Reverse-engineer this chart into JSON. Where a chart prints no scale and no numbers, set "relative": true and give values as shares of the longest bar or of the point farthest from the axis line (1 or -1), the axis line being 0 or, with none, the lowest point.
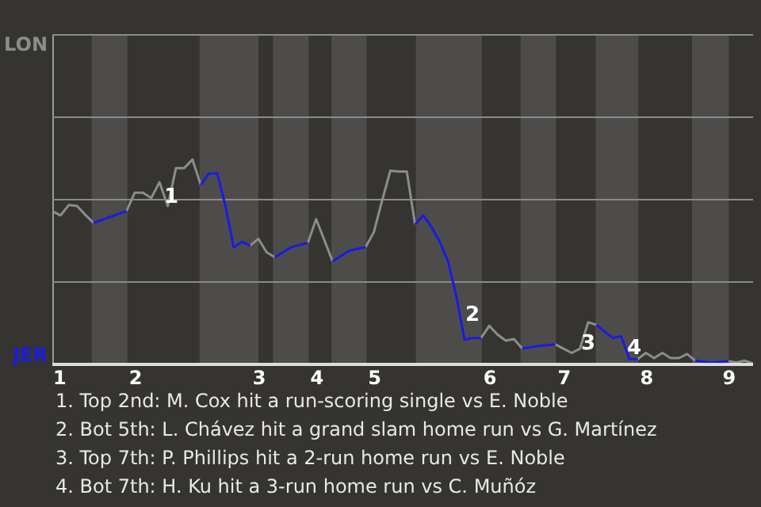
{
  "chart_data": {
    "type": "line",
    "relative": true,
    "categories": [
      "1",
      null,
      null,
      null,
      null,
      null,
      null,
      null,
      null,
      null,
      "2",
      null,
      null,
      null,
      null,
      null,
      null,
      null,
      null,
      null,
      null,
      null,
      null,
      null,
      null,
      "3",
      null,
      null,
      null,
      null,
      null,
      null,
      "4",
      null,
      null,
      null,
      null,
      null,
      null,
      "5",
      null,
      null,
      null,
      null,
      null,
      null,
      null,
      null,
      null,
      null,
      null,
      null,
      null,
      "6",
      null,
      null,
      null,
      null,
      null,
      null,
      null,
      null,
      "7",
      null,
      null,
      null,
      null,
      null,
      null,
      null,
      null,
      null,
      "8",
      null,
      null,
      null,
      null,
      null,
      null,
      null,
      null,
      null,
      "9",
      null,
      null,
      null
    ],
    "series": [
      {
        "color": "#8c8c8c",
        "values": [
          0.748,
          0.727,
          0.778,
          0.773,
          0.73,
          0.69,
          null,
          null,
          null,
          0.748,
          0.838,
          0.838,
          0.812,
          0.889,
          0.773,
          0.958,
          0.958,
          1,
          0.876,
          null,
          null,
          null,
          null,
          null,
          0.58,
          0.613,
          0.547,
          0.523,
          null,
          null,
          null,
          0.593,
          0.709,
          0.606,
          0.503,
          null,
          null,
          null,
          0.572,
          0.645,
          0.799,
          0.945,
          0.941,
          0.941,
          0.683,
          null,
          null,
          null,
          null,
          null,
          null,
          null,
          0.129,
          0.188,
          0.146,
          0.116,
          0.124,
          0.077,
          null,
          null,
          null,
          0.098,
          0.077,
          0.056,
          0.077,
          0.206,
          0.193,
          null,
          null,
          null,
          null,
          0.026,
          0.056,
          0.031,
          0.056,
          0.031,
          0.031,
          0.051,
          0.018,
          null,
          null,
          null,
          0.016,
          0.01,
          0.018,
          0.005
        ]
      },
      {
        "color": "#1a1ae6",
        "values": [
          null,
          null,
          null,
          null,
          null,
          0.69,
          0.705,
          0.719,
          0.734,
          0.748,
          null,
          null,
          null,
          null,
          null,
          null,
          null,
          null,
          0.876,
          0.932,
          0.932,
          0.773,
          0.572,
          0.598,
          0.58,
          null,
          null,
          0.523,
          0.548,
          0.572,
          0.583,
          0.593,
          null,
          null,
          0.503,
          0.529,
          0.555,
          0.564,
          0.572,
          null,
          null,
          null,
          null,
          null,
          0.683,
          0.727,
          0.67,
          0.598,
          0.503,
          0.334,
          0.121,
          0.129,
          0.129,
          null,
          null,
          null,
          null,
          0.077,
          0.084,
          0.09,
          0.094,
          0.098,
          null,
          null,
          null,
          null,
          0.193,
          0.159,
          0.129,
          0.137,
          0.026,
          0.026,
          null,
          null,
          null,
          null,
          null,
          null,
          0.018,
          0.014,
          0.01,
          0.013,
          0.016,
          null,
          null,
          null
        ]
      }
    ],
    "ref_lines": [
      {
        "axis": "y",
        "value": 0.402,
        "color": "#8a8a8a"
      },
      {
        "axis": "y",
        "value": 0.804,
        "color": "#8a8a8a"
      },
      {
        "axis": "y",
        "value": 1.206,
        "color": "#8a8a8a"
      },
      {
        "axis": "y",
        "value": 1.608,
        "color": "#8a8a8a"
      }
    ],
    "annotations": [
      "LON",
      "JER",
      "1",
      "2",
      "3",
      "4",
      "1. Top 2nd: M. Cox hit a run-scoring single vs E. Noble",
      "2. Bot 5th: L. Chávez hit a grand slam home run vs G. Martínez",
      "3. Top 7th: P. Phillips hit a 2-run home run vs E. Noble",
      "4. Bot 7th: H. Ku hit a 3-run home run vs C. Muñóz"
    ]
  }
}
